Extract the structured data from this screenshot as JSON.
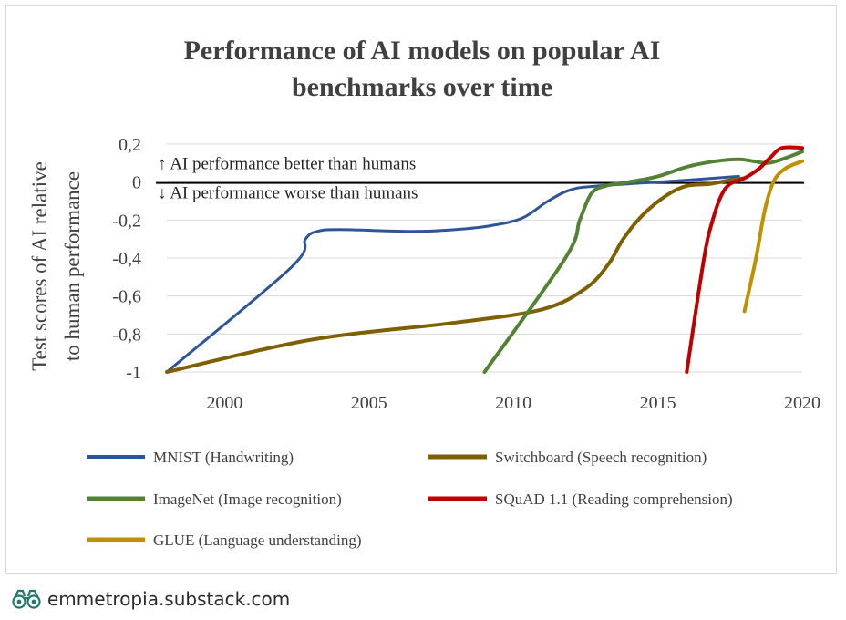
{
  "chart_data": {
    "type": "line",
    "title": "Performance of AI models on popular AI benchmarks over time",
    "title_lines": [
      "Performance of AI models on popular AI",
      "benchmarks over time"
    ],
    "ylabel": "Test scores of AI relative to human performance",
    "ylabel_lines": [
      "Test scores of AI relative",
      "to human performance"
    ],
    "xlim": [
      1998,
      2020
    ],
    "ylim": [
      -1,
      0.2
    ],
    "x_ticks": [
      2000,
      2005,
      2010,
      2015,
      2020
    ],
    "y_ticks": [
      {
        "value": 0.2,
        "label": "0,2"
      },
      {
        "value": 0,
        "label": "0"
      },
      {
        "value": -0.2,
        "label": "-0,2"
      },
      {
        "value": -0.4,
        "label": "-0,4"
      },
      {
        "value": -0.6,
        "label": "-0,6"
      },
      {
        "value": -0.8,
        "label": "-0,8"
      },
      {
        "value": -1,
        "label": "-1"
      }
    ],
    "grid": true,
    "legend_position": "bottom",
    "annotations": [
      {
        "text": "↑ AI performance better than humans"
      },
      {
        "text": "↓ AI performance worse than humans"
      }
    ],
    "series": [
      {
        "name": "MNIST (Handwriting)",
        "color": "#2e5597",
        "points": [
          [
            1998,
            -1
          ],
          [
            2002.3,
            -0.45
          ],
          [
            2002.8,
            -0.3
          ],
          [
            2003.2,
            -0.26
          ],
          [
            2004,
            -0.25
          ],
          [
            2006.5,
            -0.26
          ],
          [
            2008,
            -0.25
          ],
          [
            2009.2,
            -0.23
          ],
          [
            2010.3,
            -0.19
          ],
          [
            2011.2,
            -0.1
          ],
          [
            2012,
            -0.04
          ],
          [
            2013,
            -0.02
          ],
          [
            2016,
            0.01
          ],
          [
            2017.8,
            0.03
          ]
        ]
      },
      {
        "name": "Switchboard (Speech recognition)",
        "color": "#7f6000",
        "points": [
          [
            1998,
            -1
          ],
          [
            2003,
            -0.83
          ],
          [
            2008,
            -0.74
          ],
          [
            2011,
            -0.67
          ],
          [
            2012.5,
            -0.56
          ],
          [
            2013.3,
            -0.43
          ],
          [
            2013.8,
            -0.3
          ],
          [
            2014.5,
            -0.17
          ],
          [
            2015.3,
            -0.07
          ],
          [
            2016,
            -0.02
          ],
          [
            2016.8,
            -0.01
          ],
          [
            2017.5,
            0.01
          ],
          [
            2018,
            0.02
          ]
        ]
      },
      {
        "name": "ImageNet (Image recognition)",
        "color": "#548235",
        "points": [
          [
            2009,
            -1
          ],
          [
            2011.8,
            -0.4
          ],
          [
            2012.3,
            -0.2
          ],
          [
            2012.7,
            -0.06
          ],
          [
            2013.2,
            -0.02
          ],
          [
            2014,
            0
          ],
          [
            2015,
            0.03
          ],
          [
            2016,
            0.08
          ],
          [
            2017,
            0.11
          ],
          [
            2017.8,
            0.12
          ],
          [
            2018.3,
            0.11
          ],
          [
            2018.8,
            0.1
          ],
          [
            2019.3,
            0.12
          ],
          [
            2020,
            0.16
          ]
        ]
      },
      {
        "name": "SQuAD 1.1 (Reading comprehension)",
        "color": "#c00000",
        "points": [
          [
            2016,
            -1
          ],
          [
            2016.6,
            -0.4
          ],
          [
            2016.9,
            -0.2
          ],
          [
            2017.2,
            -0.07
          ],
          [
            2017.5,
            -0.01
          ],
          [
            2018,
            0.02
          ],
          [
            2018.5,
            0.07
          ],
          [
            2018.9,
            0.13
          ],
          [
            2019.3,
            0.18
          ],
          [
            2020,
            0.18
          ]
        ]
      },
      {
        "name": "GLUE (Language understanding)",
        "color": "#bf9000",
        "points": [
          [
            2018,
            -0.68
          ],
          [
            2018.4,
            -0.4
          ],
          [
            2018.7,
            -0.15
          ],
          [
            2019,
            0
          ],
          [
            2019.4,
            0.07
          ],
          [
            2020,
            0.11
          ]
        ]
      }
    ]
  },
  "footer": {
    "icon": "binoculars-icon",
    "text": "emmetropia.substack.com"
  }
}
